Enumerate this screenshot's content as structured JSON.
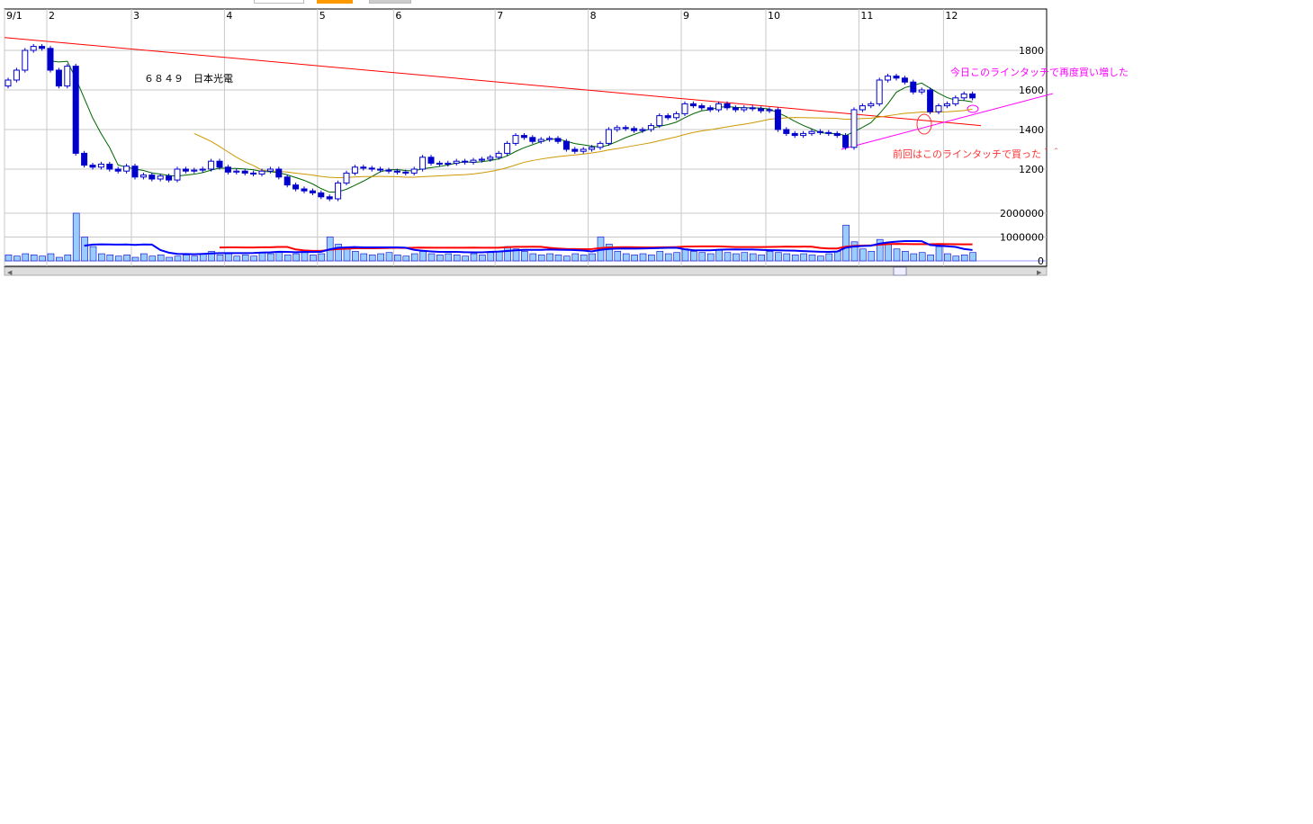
{
  "title": "６８４９　日本光電",
  "colors": {
    "candle": "#0000cc",
    "short_ma": "#006600",
    "long_ma": "#cc9900",
    "trendline": "#ff0000",
    "support_line": "#ff00ff",
    "vol_bar": "#99ccff",
    "vol_red": "#ff0000",
    "vol_blue": "#0000ff",
    "grid": "#c8c8c8"
  },
  "annotations": {
    "today": "今日このラインタッチで再度買い増した",
    "previous": "前回はこのラインタッチで買った＾＾"
  },
  "chart_data": {
    "type": "candlestick",
    "x_ticks": [
      {
        "label": "9/1",
        "index": 0
      },
      {
        "label": "2",
        "index": 5
      },
      {
        "label": "3",
        "index": 15
      },
      {
        "label": "4",
        "index": 26
      },
      {
        "label": "5",
        "index": 37
      },
      {
        "label": "6",
        "index": 46
      },
      {
        "label": "7",
        "index": 58
      },
      {
        "label": "8",
        "index": 69
      },
      {
        "label": "9",
        "index": 80
      },
      {
        "label": "10",
        "index": 90
      },
      {
        "label": "11",
        "index": 101
      },
      {
        "label": "12",
        "index": 111
      }
    ],
    "price_ticks": [
      1800,
      1600,
      1400,
      1200
    ],
    "volume_ticks": [
      2000000,
      1000000,
      0
    ],
    "grid": true,
    "close": [
      1650,
      1700,
      1800,
      1820,
      1810,
      1700,
      1620,
      1720,
      1280,
      1220,
      1210,
      1225,
      1200,
      1190,
      1215,
      1160,
      1170,
      1150,
      1165,
      1145,
      1200,
      1190,
      1195,
      1200,
      1240,
      1210,
      1185,
      1190,
      1180,
      1175,
      1190,
      1200,
      1160,
      1120,
      1100,
      1090,
      1080,
      1060,
      1050,
      1130,
      1180,
      1210,
      1205,
      1200,
      1195,
      1190,
      1185,
      1180,
      1200,
      1260,
      1230,
      1225,
      1230,
      1240,
      1235,
      1245,
      1250,
      1260,
      1280,
      1330,
      1370,
      1360,
      1340,
      1350,
      1355,
      1340,
      1300,
      1290,
      1300,
      1310,
      1330,
      1400,
      1410,
      1405,
      1395,
      1400,
      1420,
      1470,
      1460,
      1480,
      1530,
      1520,
      1510,
      1500,
      1530,
      1510,
      1500,
      1510,
      1505,
      1495,
      1500,
      1400,
      1380,
      1370,
      1380,
      1390,
      1385,
      1380,
      1370,
      1310,
      1500,
      1520,
      1530,
      1650,
      1670,
      1660,
      1640,
      1590,
      1600,
      1490,
      1520,
      1530,
      1560,
      1580,
      1560
    ],
    "volume": [
      250000,
      200000,
      300000,
      250000,
      200000,
      300000,
      150000,
      250000,
      2000000,
      1000000,
      600000,
      300000,
      250000,
      200000,
      250000,
      150000,
      300000,
      200000,
      250000,
      150000,
      200000,
      250000,
      200000,
      300000,
      400000,
      250000,
      300000,
      200000,
      250000,
      200000,
      350000,
      300000,
      400000,
      250000,
      300000,
      350000,
      250000,
      300000,
      1000000,
      700000,
      500000,
      400000,
      300000,
      250000,
      300000,
      350000,
      250000,
      200000,
      300000,
      400000,
      300000,
      250000,
      300000,
      250000,
      200000,
      300000,
      250000,
      350000,
      400000,
      600000,
      500000,
      400000,
      300000,
      250000,
      300000,
      250000,
      200000,
      300000,
      250000,
      300000,
      1000000,
      700000,
      400000,
      300000,
      250000,
      300000,
      250000,
      400000,
      300000,
      350000,
      500000,
      400000,
      350000,
      300000,
      450000,
      350000,
      300000,
      350000,
      300000,
      250000,
      400000,
      350000,
      300000,
      250000,
      300000,
      250000,
      200000,
      300000,
      400000,
      1500000,
      800000,
      500000,
      400000,
      900000,
      700000,
      500000,
      400000,
      300000,
      350000,
      250000,
      600000,
      300000,
      200000,
      250000,
      350000
    ],
    "trendline": {
      "start": {
        "index": 0,
        "price": 1865
      },
      "end": {
        "index": 115,
        "price": 1420
      }
    },
    "support_line": {
      "start": {
        "index": 98.5,
        "price": 1300
      },
      "end": {
        "index": 123.8,
        "price": 1585
      }
    }
  }
}
